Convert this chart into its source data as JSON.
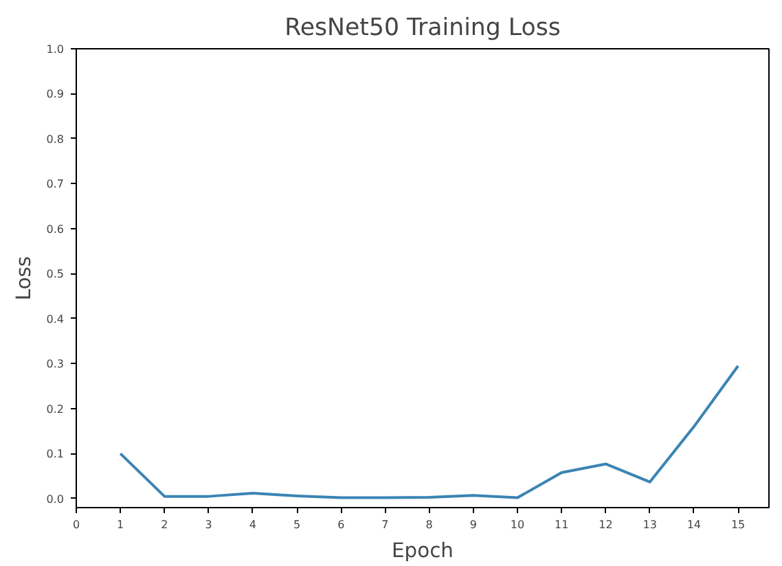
{
  "chart_data": {
    "type": "line",
    "title": "ResNet50 Training Loss",
    "xlabel": "Epoch",
    "ylabel": "Loss",
    "x": [
      1,
      2,
      3,
      4,
      5,
      6,
      7,
      8,
      9,
      10,
      11,
      12,
      13,
      14,
      15
    ],
    "series": [
      {
        "color": "#3b84b4",
        "values": [
          0.1,
          0.005,
          0.005,
          0.012,
          0.006,
          0.002,
          0.002,
          0.003,
          0.007,
          0.002,
          0.058,
          0.077,
          0.037,
          0.16,
          0.295
        ]
      }
    ],
    "xlim": [
      0,
      15.7
    ],
    "ylim": [
      -0.02,
      1.0
    ],
    "xticks": [
      0,
      1,
      2,
      3,
      4,
      5,
      6,
      7,
      8,
      9,
      10,
      11,
      12,
      13,
      14,
      15
    ],
    "yticks": [
      {
        "value": 0,
        "label": "0.0"
      },
      {
        "value": 0.1,
        "label": "0.1"
      },
      {
        "value": 0.2,
        "label": "0.2"
      },
      {
        "value": 0.3,
        "label": "0.3"
      },
      {
        "value": 0.4,
        "label": "0.4"
      },
      {
        "value": 0.5,
        "label": "0.5"
      },
      {
        "value": 0.6,
        "label": "0.6"
      },
      {
        "value": 0.7,
        "label": "0.7"
      },
      {
        "value": 0.8,
        "label": "0.8"
      },
      {
        "value": 0.9,
        "label": "0.9"
      },
      {
        "value": 1.0,
        "label": "1.0"
      }
    ],
    "grid": false,
    "marker": "none",
    "line_style": "solid"
  }
}
